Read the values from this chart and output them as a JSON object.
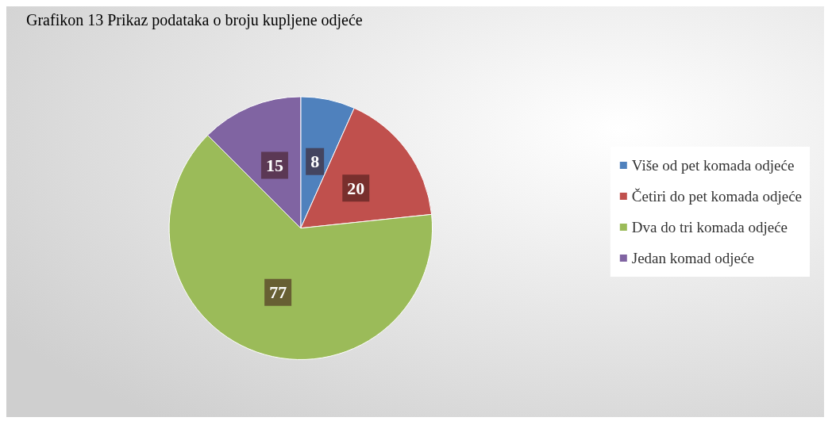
{
  "chart_data": {
    "type": "pie",
    "title": "Grafikon 13 Prikaz podataka o broju kupljene odjeće",
    "categories": [
      "Više od pet komada odjeće",
      "Četiri do pet komada odjeće",
      "Dva do tri komada odjeće",
      "Jedan komad odjeće"
    ],
    "values": [
      8,
      20,
      77,
      15
    ],
    "colors": [
      "#4f81bd",
      "#c0504d",
      "#9bbb59",
      "#8064a2"
    ],
    "data_labels": true,
    "legend": "right"
  }
}
